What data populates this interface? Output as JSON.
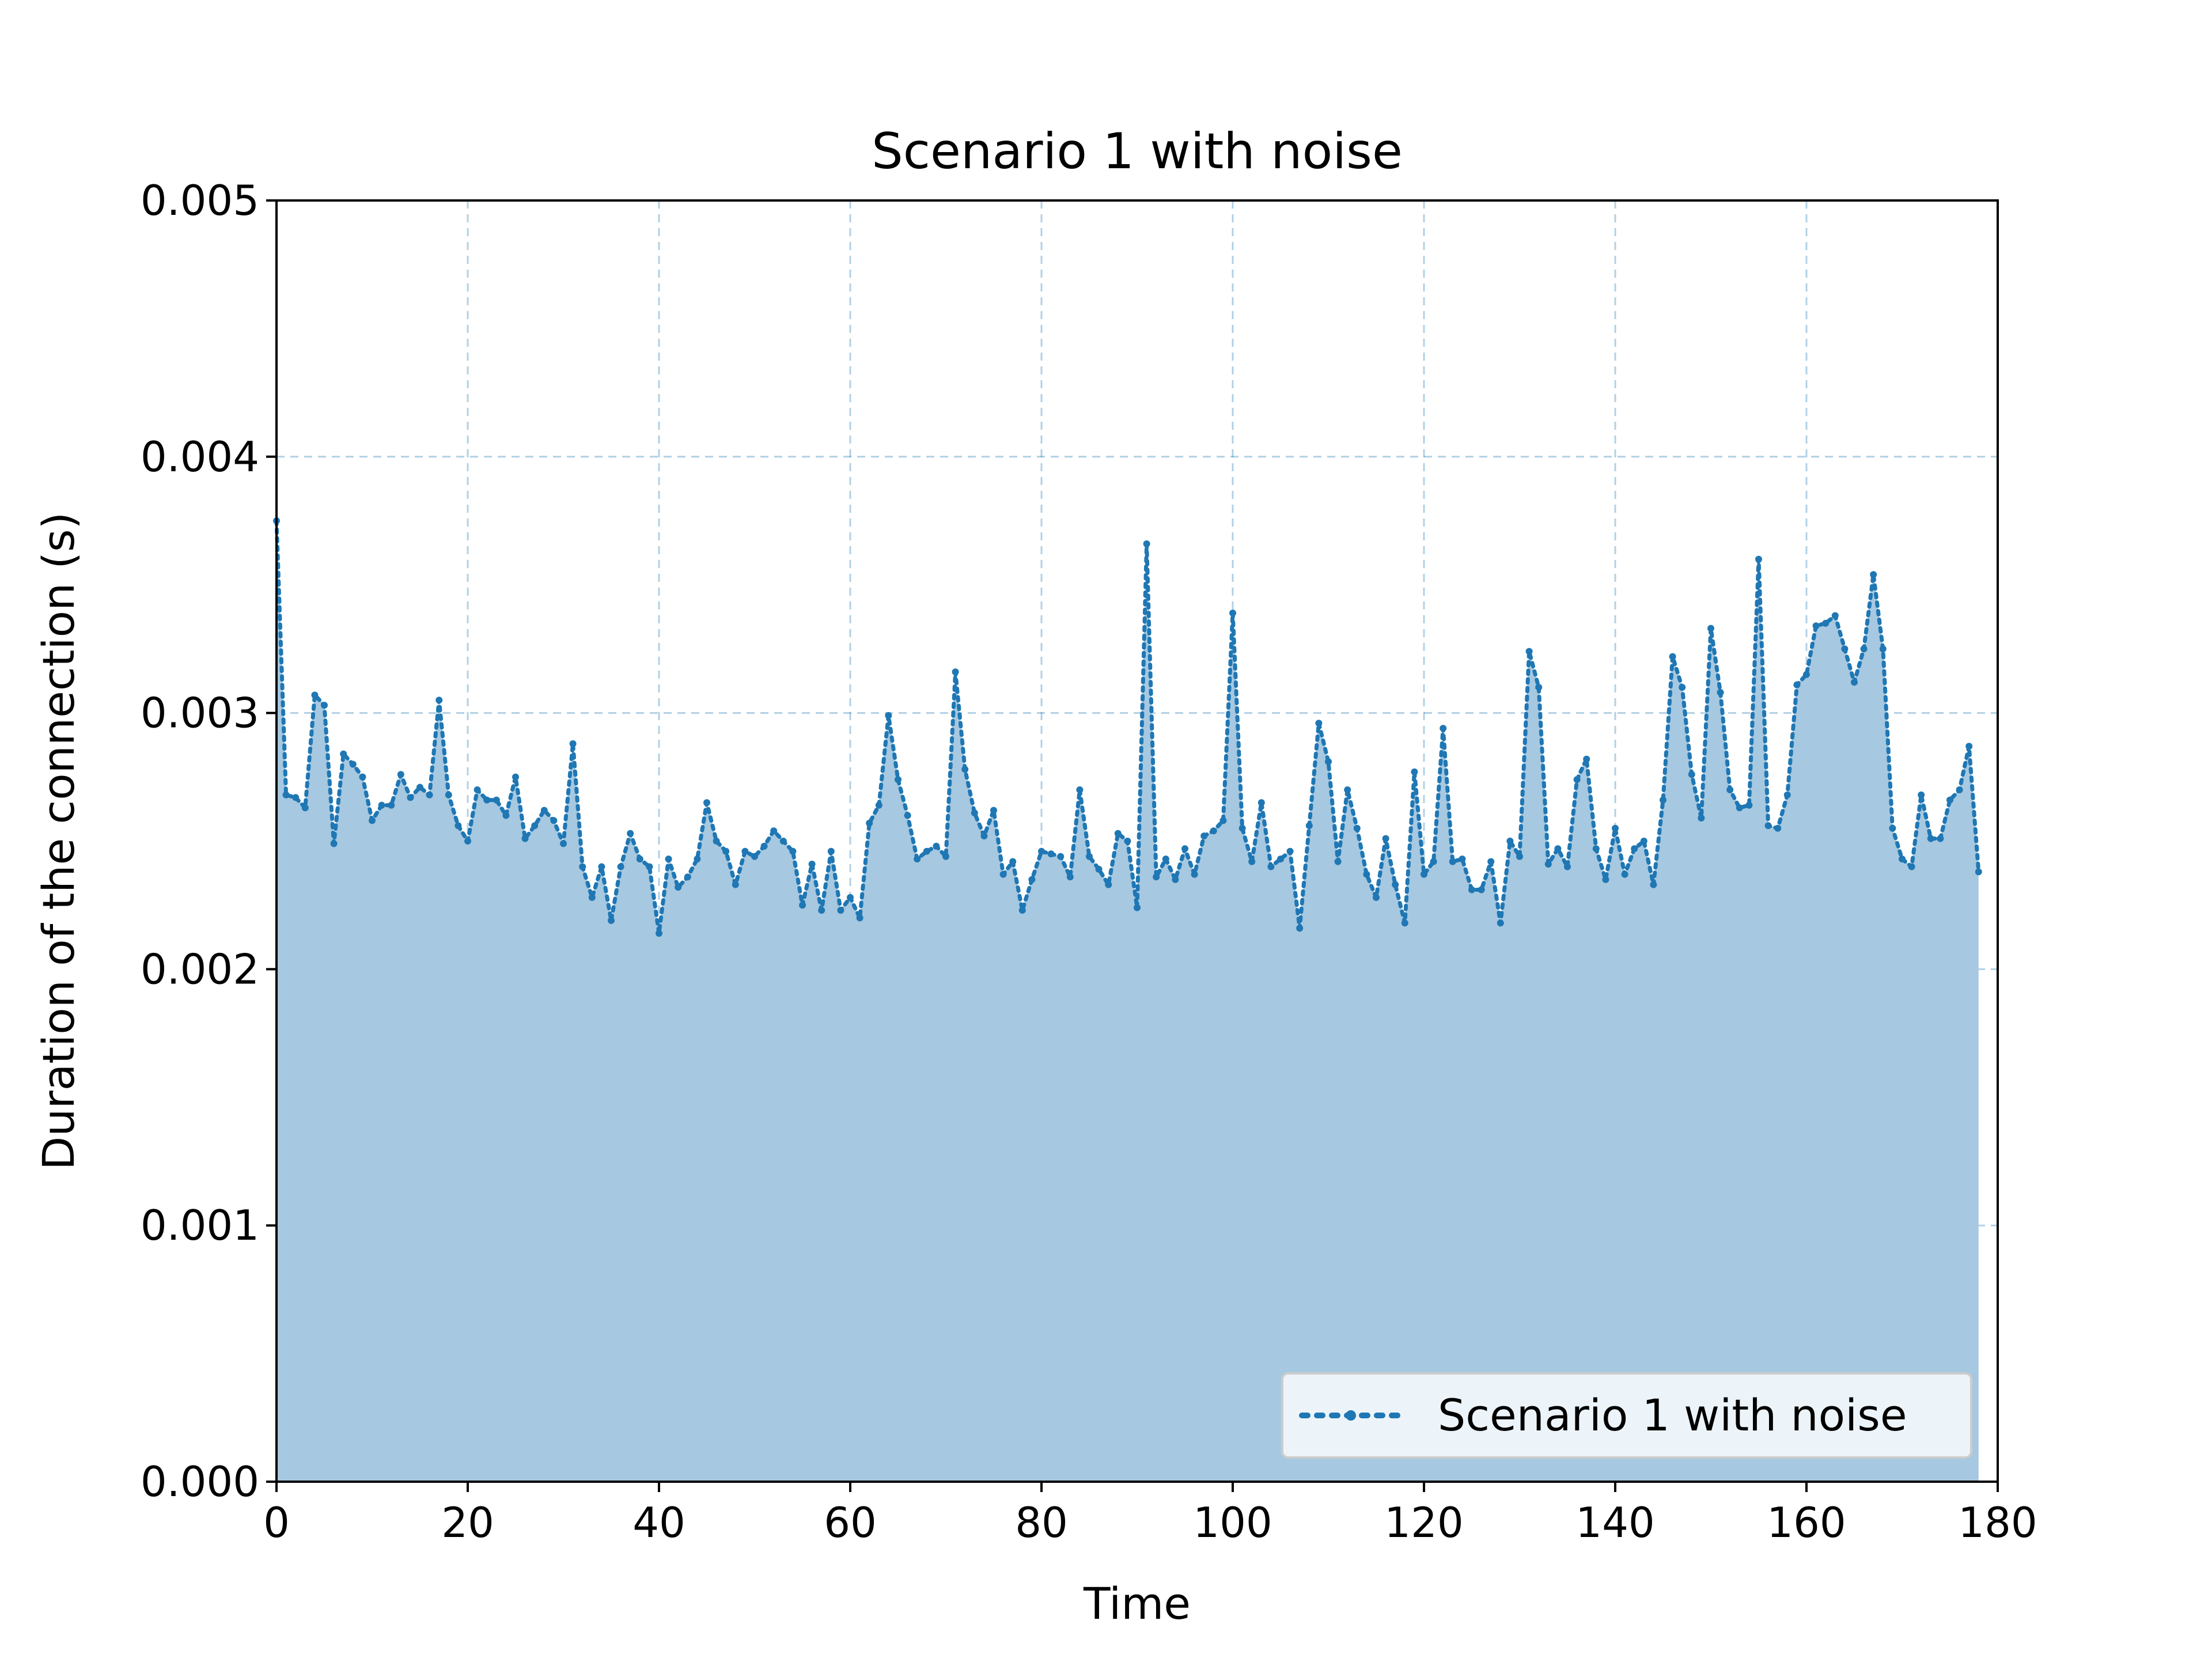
{
  "chart_data": {
    "type": "area",
    "title": "Scenario 1 with noise",
    "xlabel": "Time",
    "ylabel": "Duration of the connection (s)",
    "xlim": [
      0,
      180
    ],
    "ylim": [
      0,
      0.005
    ],
    "x_ticks": [
      "0",
      "20",
      "40",
      "60",
      "80",
      "100",
      "120",
      "140",
      "160",
      "180"
    ],
    "y_ticks": [
      "0.000",
      "0.001",
      "0.002",
      "0.003",
      "0.004",
      "0.005"
    ],
    "grid": true,
    "legend_position": "lower-right",
    "series": [
      {
        "name": "Scenario 1 with noise",
        "color": "#1f77b4",
        "fill_color": "#a6c8e0",
        "line_style": "dotted",
        "marker": "point",
        "x": [
          0,
          1,
          2,
          3,
          4,
          5,
          6,
          7,
          8,
          9,
          10,
          11,
          12,
          13,
          14,
          15,
          16,
          17,
          18,
          19,
          20,
          21,
          22,
          23,
          24,
          25,
          26,
          27,
          28,
          29,
          30,
          31,
          32,
          33,
          34,
          35,
          36,
          37,
          38,
          39,
          40,
          41,
          42,
          43,
          44,
          45,
          46,
          47,
          48,
          49,
          50,
          51,
          52,
          53,
          54,
          55,
          56,
          57,
          58,
          59,
          60,
          61,
          62,
          63,
          64,
          65,
          66,
          67,
          68,
          69,
          70,
          71,
          72,
          73,
          74,
          75,
          76,
          77,
          78,
          79,
          80,
          81,
          82,
          83,
          84,
          85,
          86,
          87,
          88,
          89,
          90,
          91,
          92,
          93,
          94,
          95,
          96,
          97,
          98,
          99,
          100,
          101,
          102,
          103,
          104,
          105,
          106,
          107,
          108,
          109,
          110,
          111,
          112,
          113,
          114,
          115,
          116,
          117,
          118,
          119,
          120,
          121,
          122,
          123,
          124,
          125,
          126,
          127,
          128,
          129,
          130,
          131,
          132,
          133,
          134,
          135,
          136,
          137,
          138,
          139,
          140,
          141,
          142,
          143,
          144,
          145,
          146,
          147,
          148,
          149,
          150,
          151,
          152,
          153,
          154,
          155,
          156,
          157,
          158,
          159,
          160,
          161,
          162,
          163,
          164,
          165,
          166,
          167,
          168,
          169,
          170,
          171,
          172,
          173,
          174,
          175,
          176,
          177,
          178
        ],
        "values": [
          0.00375,
          0.00268,
          0.00267,
          0.00263,
          0.00307,
          0.00303,
          0.00249,
          0.00284,
          0.0028,
          0.00275,
          0.00258,
          0.00264,
          0.00264,
          0.00276,
          0.00267,
          0.00271,
          0.00268,
          0.00305,
          0.00268,
          0.00256,
          0.0025,
          0.0027,
          0.00266,
          0.00266,
          0.0026,
          0.00275,
          0.00251,
          0.00256,
          0.00262,
          0.00258,
          0.00249,
          0.00288,
          0.0024,
          0.00228,
          0.0024,
          0.00219,
          0.0024,
          0.00253,
          0.00243,
          0.0024,
          0.00214,
          0.00243,
          0.00232,
          0.00236,
          0.00243,
          0.00265,
          0.0025,
          0.00246,
          0.00233,
          0.00246,
          0.00244,
          0.00248,
          0.00254,
          0.0025,
          0.00246,
          0.00225,
          0.00241,
          0.00223,
          0.00246,
          0.00223,
          0.00228,
          0.0022,
          0.00257,
          0.00264,
          0.00299,
          0.00274,
          0.0026,
          0.00243,
          0.00246,
          0.00248,
          0.00244,
          0.00316,
          0.00278,
          0.00261,
          0.00252,
          0.00262,
          0.00237,
          0.00242,
          0.00223,
          0.00235,
          0.00246,
          0.00245,
          0.00244,
          0.00236,
          0.0027,
          0.00244,
          0.00239,
          0.00233,
          0.00253,
          0.0025,
          0.00224,
          0.00366,
          0.00236,
          0.00243,
          0.00235,
          0.00247,
          0.00237,
          0.00252,
          0.00254,
          0.00258,
          0.00339,
          0.00255,
          0.00242,
          0.00265,
          0.0024,
          0.00243,
          0.00246,
          0.00216,
          0.00256,
          0.00296,
          0.00281,
          0.00242,
          0.0027,
          0.00255,
          0.00237,
          0.00228,
          0.00251,
          0.00233,
          0.00218,
          0.00277,
          0.00237,
          0.00242,
          0.00294,
          0.00242,
          0.00243,
          0.00231,
          0.00231,
          0.00242,
          0.00218,
          0.0025,
          0.00244,
          0.00324,
          0.0031,
          0.00241,
          0.00247,
          0.0024,
          0.00274,
          0.00282,
          0.00247,
          0.00235,
          0.00255,
          0.00237,
          0.00247,
          0.0025,
          0.00233,
          0.00266,
          0.00322,
          0.0031,
          0.00276,
          0.00259,
          0.00333,
          0.00308,
          0.0027,
          0.00263,
          0.00264,
          0.0036,
          0.00256,
          0.00255,
          0.00268,
          0.00311,
          0.00315,
          0.00334,
          0.00335,
          0.00338,
          0.00325,
          0.00312,
          0.00325,
          0.00354,
          0.00325,
          0.00255,
          0.00243,
          0.0024,
          0.00268,
          0.00251,
          0.00251,
          0.00266,
          0.0027,
          0.00287,
          0.00238
        ]
      }
    ]
  }
}
